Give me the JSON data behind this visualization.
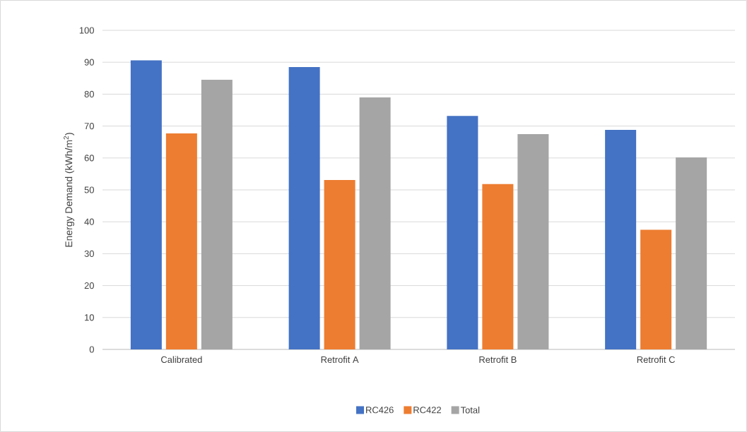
{
  "chart_data": {
    "type": "bar",
    "ylabel": "Energy Demand (kWh/m$^{2}$)",
    "categories": [
      "Calibrated",
      "Retrofit A",
      "Retrofit B",
      "Retrofit C"
    ],
    "series": [
      {
        "name": "RC426",
        "color": "#4472c4",
        "values": [
          90.6,
          88.5,
          73.2,
          68.8
        ]
      },
      {
        "name": "RC422",
        "color": "#ed7d31",
        "values": [
          67.7,
          53.1,
          51.8,
          37.5
        ]
      },
      {
        "name": "Total",
        "color": "#a5a5a5",
        "values": [
          84.5,
          79.0,
          67.5,
          60.2
        ]
      }
    ],
    "ylim": [
      0,
      100
    ],
    "yticks": [
      0,
      10,
      20,
      30,
      40,
      50,
      60,
      70,
      80,
      90,
      100
    ],
    "grid": "y",
    "legend": "bottom"
  }
}
